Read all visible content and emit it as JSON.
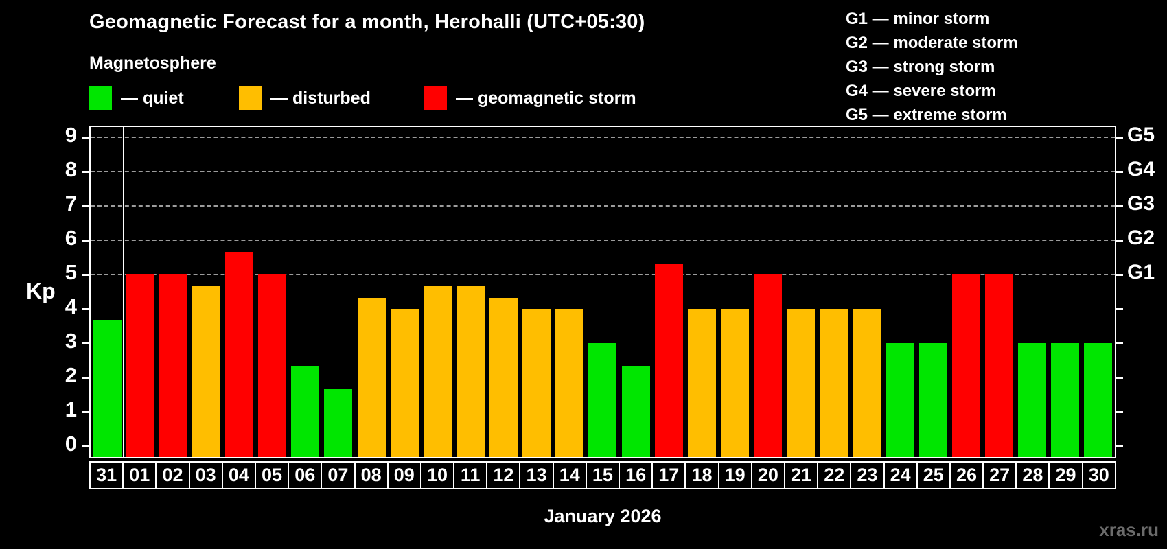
{
  "header": {
    "legend": [
      {
        "name": "quiet",
        "label": "— quiet",
        "color": "#00E600"
      },
      {
        "name": "disturbed",
        "label": "— disturbed",
        "color": "#FFBE00"
      },
      {
        "name": "geomagnetic-storm",
        "label": "— geomagnetic storm",
        "color": "#FF0000"
      }
    ],
    "storm_scale": [
      {
        "code": "G1",
        "label": "G1 — minor storm"
      },
      {
        "code": "G2",
        "label": "G2 — moderate storm"
      },
      {
        "code": "G3",
        "label": "G3 — strong storm"
      },
      {
        "code": "G4",
        "label": "G4 — severe storm"
      },
      {
        "code": "G5",
        "label": "G5 — extreme storm"
      }
    ]
  },
  "chart_data": {
    "type": "bar",
    "title": "Geomagnetic Forecast for a month, Herohalli (UTC+05:30)",
    "subtitle": "Magnetosphere",
    "ylabel": "Kp",
    "xlabel": "January 2026",
    "ylim": [
      0,
      9
    ],
    "y_ticks": [
      0,
      1,
      2,
      3,
      4,
      5,
      6,
      7,
      8,
      9
    ],
    "grid": "dashed horizontal lines at Kp 5,6,7,8,9 only",
    "right_axis": [
      {
        "label": "G1",
        "kp": 5
      },
      {
        "label": "G2",
        "kp": 6
      },
      {
        "label": "G3",
        "kp": 7
      },
      {
        "label": "G4",
        "kp": 8
      },
      {
        "label": "G5",
        "kp": 9
      }
    ],
    "categories": [
      "31",
      "01",
      "02",
      "03",
      "04",
      "05",
      "06",
      "07",
      "08",
      "09",
      "10",
      "11",
      "12",
      "13",
      "14",
      "15",
      "16",
      "17",
      "18",
      "19",
      "20",
      "21",
      "22",
      "23",
      "24",
      "25",
      "26",
      "27",
      "28",
      "29",
      "30"
    ],
    "values": [
      3.67,
      5,
      5,
      4.67,
      5.67,
      5,
      2.33,
      1.67,
      4.33,
      4,
      4.67,
      4.67,
      4.33,
      4,
      4,
      3,
      2.33,
      5.33,
      4,
      4,
      5,
      4,
      4,
      4,
      3,
      3,
      5,
      5,
      3,
      3,
      3
    ],
    "series_colors": {
      "quiet": "#00E600",
      "disturbed": "#FFBE00",
      "storm": "#FF0000"
    },
    "thresholds": {
      "disturbed": 4,
      "storm": 5
    },
    "separator_after_index": 0
  },
  "footer": {
    "watermark": "xras.ru"
  }
}
